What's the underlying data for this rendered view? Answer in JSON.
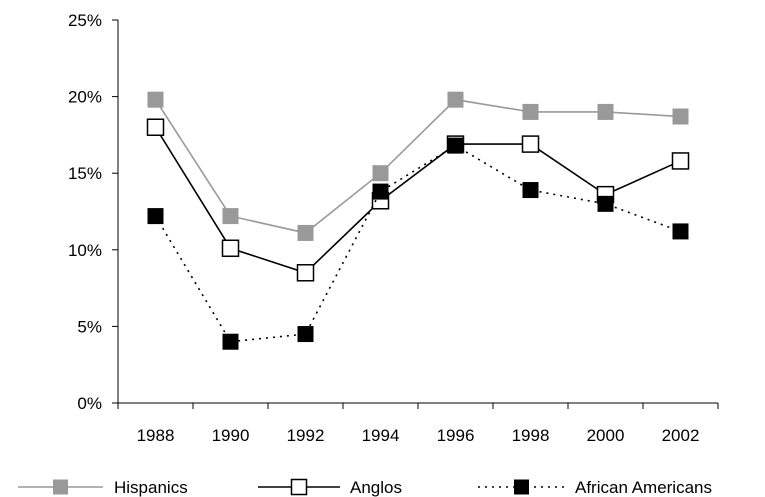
{
  "chart_data": {
    "type": "line",
    "title": "",
    "xlabel": "",
    "ylabel": "",
    "categories": [
      "1988",
      "1990",
      "1992",
      "1994",
      "1996",
      "1998",
      "2000",
      "2002"
    ],
    "ylim": [
      0,
      25
    ],
    "yticks": [
      0,
      5,
      10,
      15,
      20,
      25
    ],
    "ytick_labels": [
      "0%",
      "5%",
      "10%",
      "15%",
      "20%",
      "25%"
    ],
    "grid": false,
    "legend_position": "bottom",
    "series": [
      {
        "name": "Hispanics",
        "values": [
          19.8,
          12.2,
          11.1,
          15.0,
          19.8,
          19.0,
          19.0,
          18.7
        ],
        "color": "#999999",
        "line_style": "solid",
        "marker": "filled-square"
      },
      {
        "name": "Anglos",
        "values": [
          18.0,
          10.1,
          8.5,
          13.2,
          16.9,
          16.9,
          13.6,
          15.8
        ],
        "color": "#000000",
        "line_style": "solid",
        "marker": "hollow-square"
      },
      {
        "name": "African Americans",
        "values": [
          12.2,
          4.0,
          4.5,
          13.8,
          16.8,
          13.9,
          13.0,
          11.2
        ],
        "color": "#000000",
        "line_style": "dotted",
        "marker": "filled-square"
      }
    ]
  }
}
